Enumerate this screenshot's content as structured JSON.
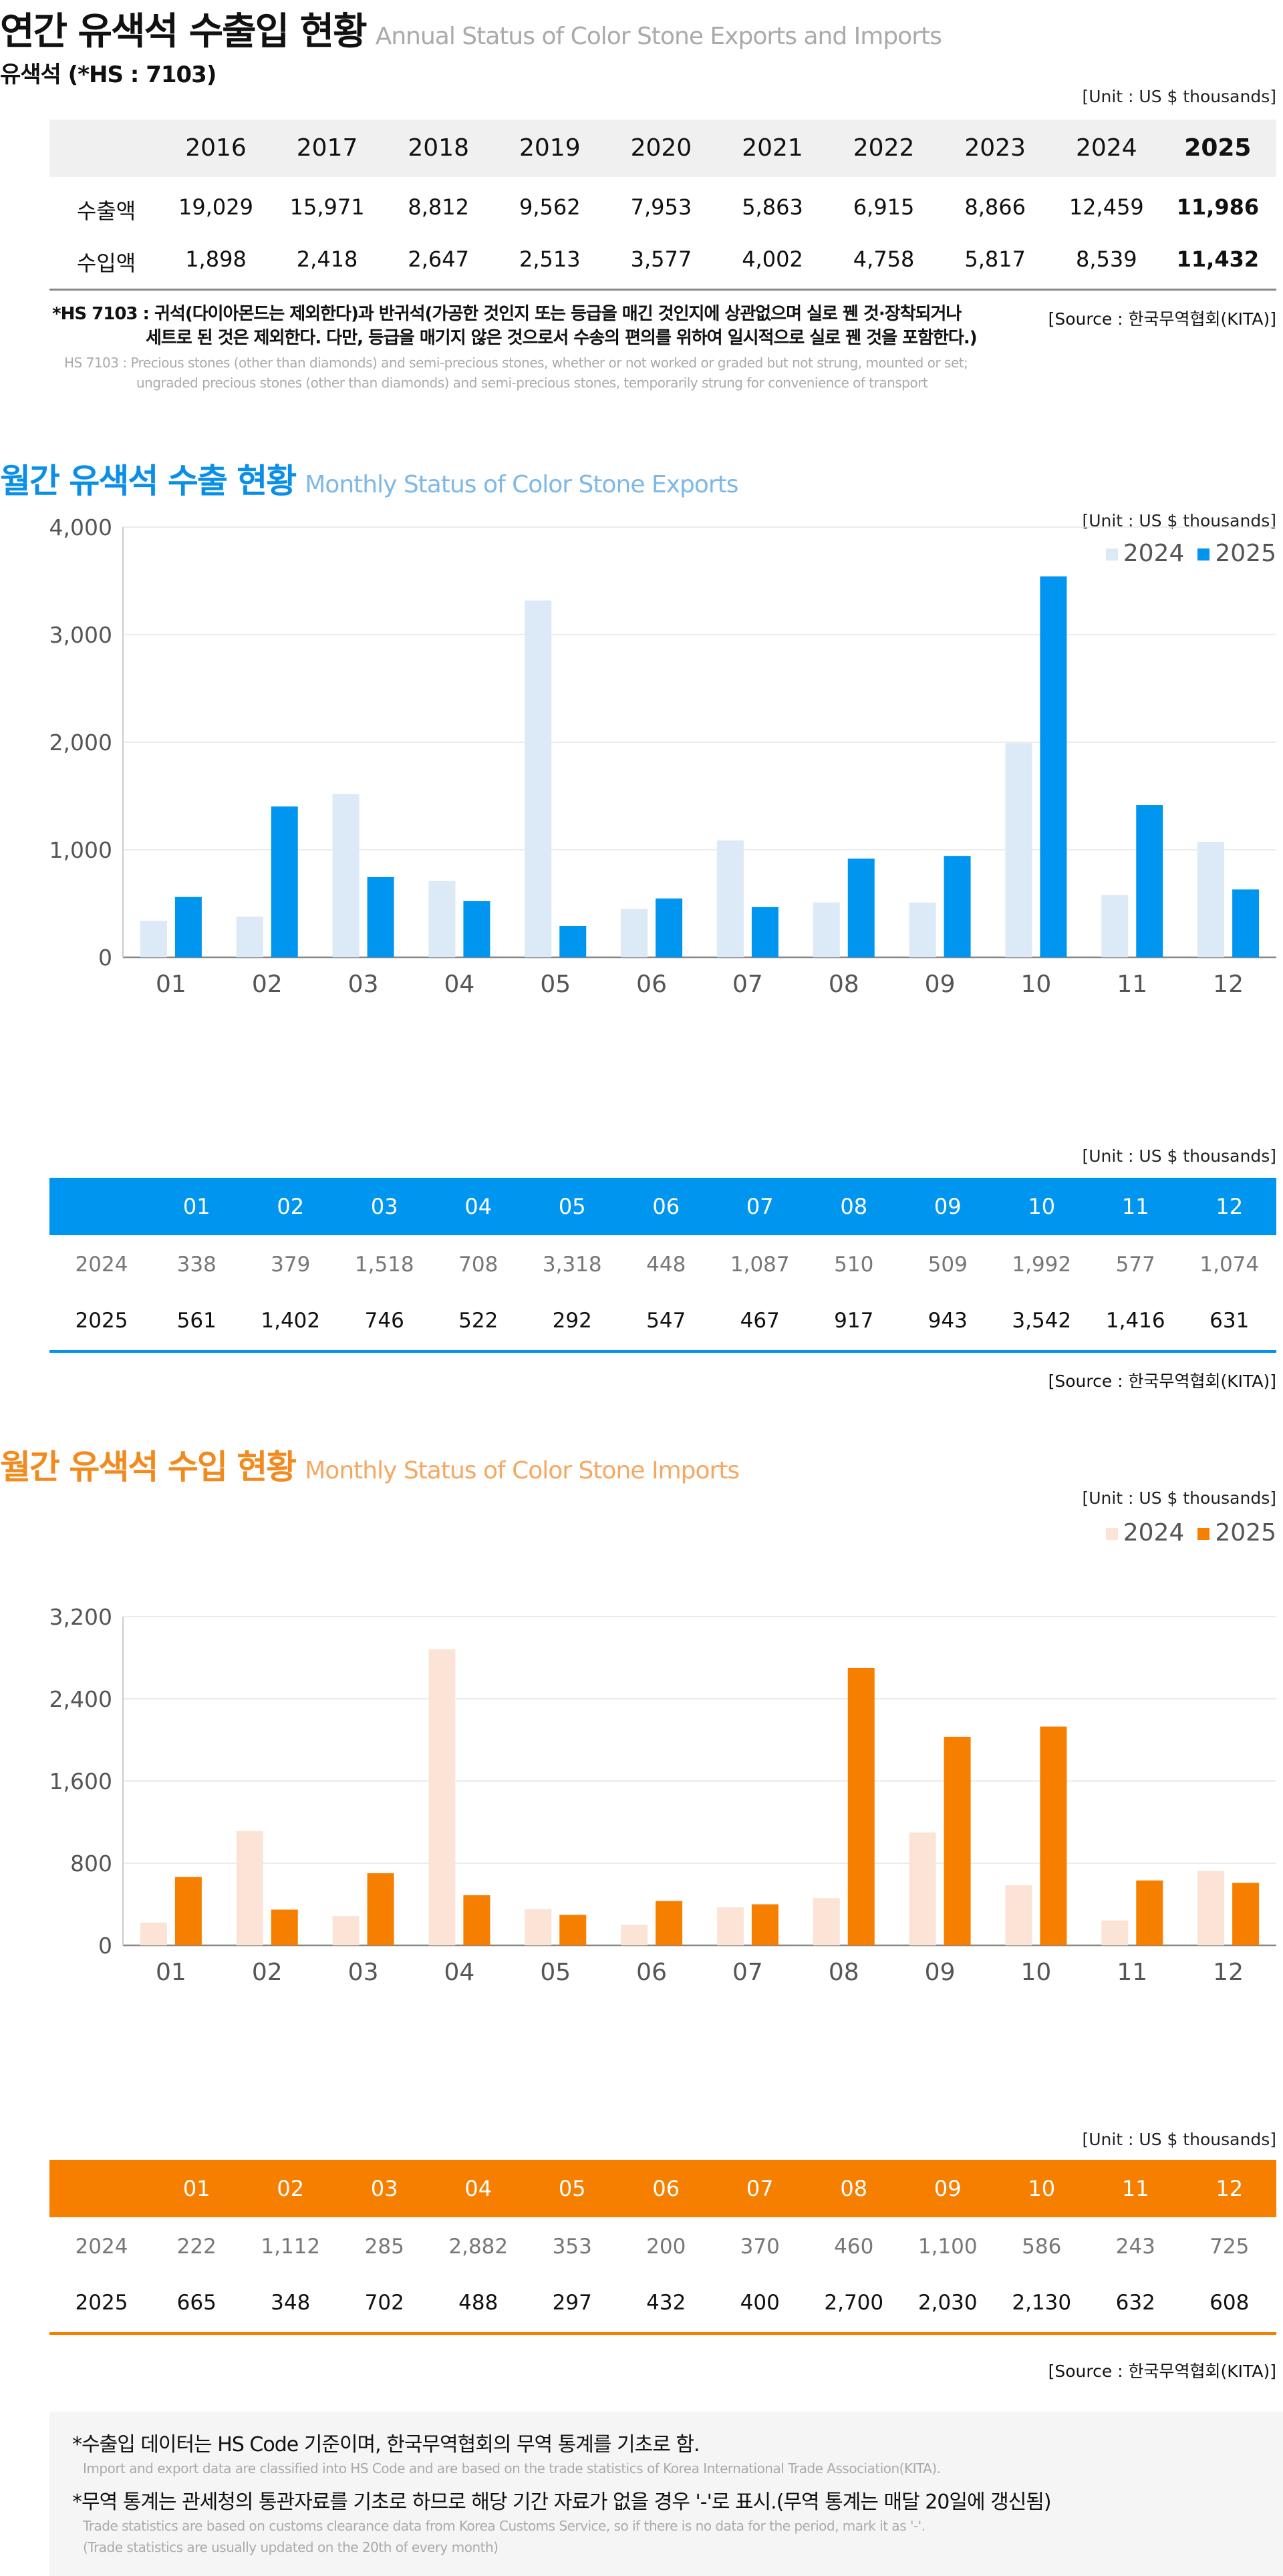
{
  "annual": {
    "title": "연간 유색석 수출입 현황",
    "title_en": "Annual Status of Color Stone Exports and Imports",
    "subtitle": "유색석 (*HS : 7103)",
    "unit": "[Unit : US $ thousands]",
    "years": [
      "2016",
      "2017",
      "2018",
      "2019",
      "2020",
      "2021",
      "2022",
      "2023",
      "2024",
      "2025"
    ],
    "rows": [
      {
        "label": "수출액",
        "values": [
          "19,029",
          "15,971",
          "8,812",
          "9,562",
          "7,953",
          "5,863",
          "6,915",
          "8,866",
          "12,459",
          "11,986"
        ]
      },
      {
        "label": "수입액",
        "values": [
          "1,898",
          "2,418",
          "2,647",
          "2,513",
          "3,577",
          "4,002",
          "4,758",
          "5,817",
          "8,539",
          "11,432"
        ]
      }
    ],
    "note1": "*HS 7103 : 귀석(다이아몬드는 제외한다)과 반귀석(가공한 것인지 또는 등급을 매긴 것인지에 상관없으며 실로 꿴 것·장착되거나",
    "note2": "세트로 된 것은 제외한다. 다만, 등급을 매기지 않은 것으로서 수송의 편의를 위하여 일시적으로 실로 꿴 것을 포함한다.)",
    "note_en1": "HS 7103 : Precious stones (other than diamonds) and semi-precious stones, whether or not worked or graded but not strung, mounted or set;",
    "note_en2": "ungraded precious stones (other than diamonds) and semi-precious stones, temporarily strung for convenience of transport",
    "source": "[Source : 한국무역협회(KITA)]"
  },
  "exports": {
    "title": "월간 유색석 수출 현황",
    "title_en": "Monthly Status of Color Stone Exports",
    "unit": "[Unit : US $ thousands]",
    "source": "[Source : 한국무역협회(KITA)]",
    "color_2024": "#dce9f6",
    "color_2025": "#0096f0",
    "title_color": "#0a8fe8",
    "title_en_color": "#7db8e8"
  },
  "imports": {
    "title": "월간 유색석 수입 현황",
    "title_en": "Monthly Status of Color Stone Imports",
    "unit": "[Unit : US $ thousands]",
    "source": "[Source : 한국무역협회(KITA)]",
    "color_2024": "#fbe4d5",
    "color_2025": "#f77f00",
    "title_color": "#f28a1e",
    "title_en_color": "#f5a862"
  },
  "chart_data": [
    {
      "type": "bar",
      "ylim": [
        0,
        4000
      ],
      "yticks": [
        "0",
        "1,000",
        "2,000",
        "3,000",
        "4,000"
      ],
      "grid": true,
      "legend": "top-right",
      "categories": [
        "01",
        "02",
        "03",
        "04",
        "05",
        "06",
        "07",
        "08",
        "09",
        "10",
        "11",
        "12"
      ],
      "series": [
        {
          "name": "2024",
          "values": [
            338,
            379,
            1518,
            708,
            3318,
            448,
            1087,
            510,
            509,
            1992,
            577,
            1074
          ]
        },
        {
          "name": "2025",
          "values": [
            561,
            1402,
            746,
            522,
            292,
            547,
            467,
            917,
            943,
            3542,
            1416,
            631
          ]
        }
      ],
      "table": {
        "2024": [
          "338",
          "379",
          "1,518",
          "708",
          "3,318",
          "448",
          "1,087",
          "510",
          "509",
          "1,992",
          "577",
          "1,074"
        ],
        "2025": [
          "561",
          "1,402",
          "746",
          "522",
          "292",
          "547",
          "467",
          "917",
          "943",
          "3,542",
          "1,416",
          "631"
        ]
      }
    },
    {
      "type": "bar",
      "ylim": [
        0,
        3200
      ],
      "yticks": [
        "0",
        "800",
        "1,600",
        "2,400",
        "3,200"
      ],
      "grid": true,
      "legend": "top-right",
      "categories": [
        "01",
        "02",
        "03",
        "04",
        "05",
        "06",
        "07",
        "08",
        "09",
        "10",
        "11",
        "12"
      ],
      "series": [
        {
          "name": "2024",
          "values": [
            222,
            1112,
            285,
            2882,
            353,
            200,
            370,
            460,
            1100,
            586,
            243,
            725
          ]
        },
        {
          "name": "2025",
          "values": [
            665,
            348,
            702,
            488,
            297,
            432,
            400,
            2700,
            2030,
            2130,
            632,
            608
          ]
        }
      ],
      "table": {
        "2024": [
          "222",
          "1,112",
          "285",
          "2,882",
          "353",
          "200",
          "370",
          "460",
          "1,100",
          "586",
          "243",
          "725"
        ],
        "2025": [
          "665",
          "348",
          "702",
          "488",
          "297",
          "432",
          "400",
          "2,700",
          "2,030",
          "2,130",
          "632",
          "608"
        ]
      }
    }
  ],
  "footer": {
    "l1": "*수출입 데이터는 HS Code 기준이며, 한국무역협회의 무역 통계를 기초로 함.",
    "l1_en": "Import and export data are classified into HS Code and are based on the trade statistics of Korea International  Trade Association(KITA).",
    "l2": "*무역 통계는 관세청의  통관자료를 기초로 하므로 해당 기간 자료가 없을 경우 '-'로 표시.(무역 통계는 매달 20일에 갱신됨)",
    "l2_en": "Trade statistics are based on customs clearance data from Korea Customs Service, so if there is no data for the period, mark it as '-'.",
    "l3_en": "(Trade statistics are usually updated on the 20th of every month)"
  }
}
